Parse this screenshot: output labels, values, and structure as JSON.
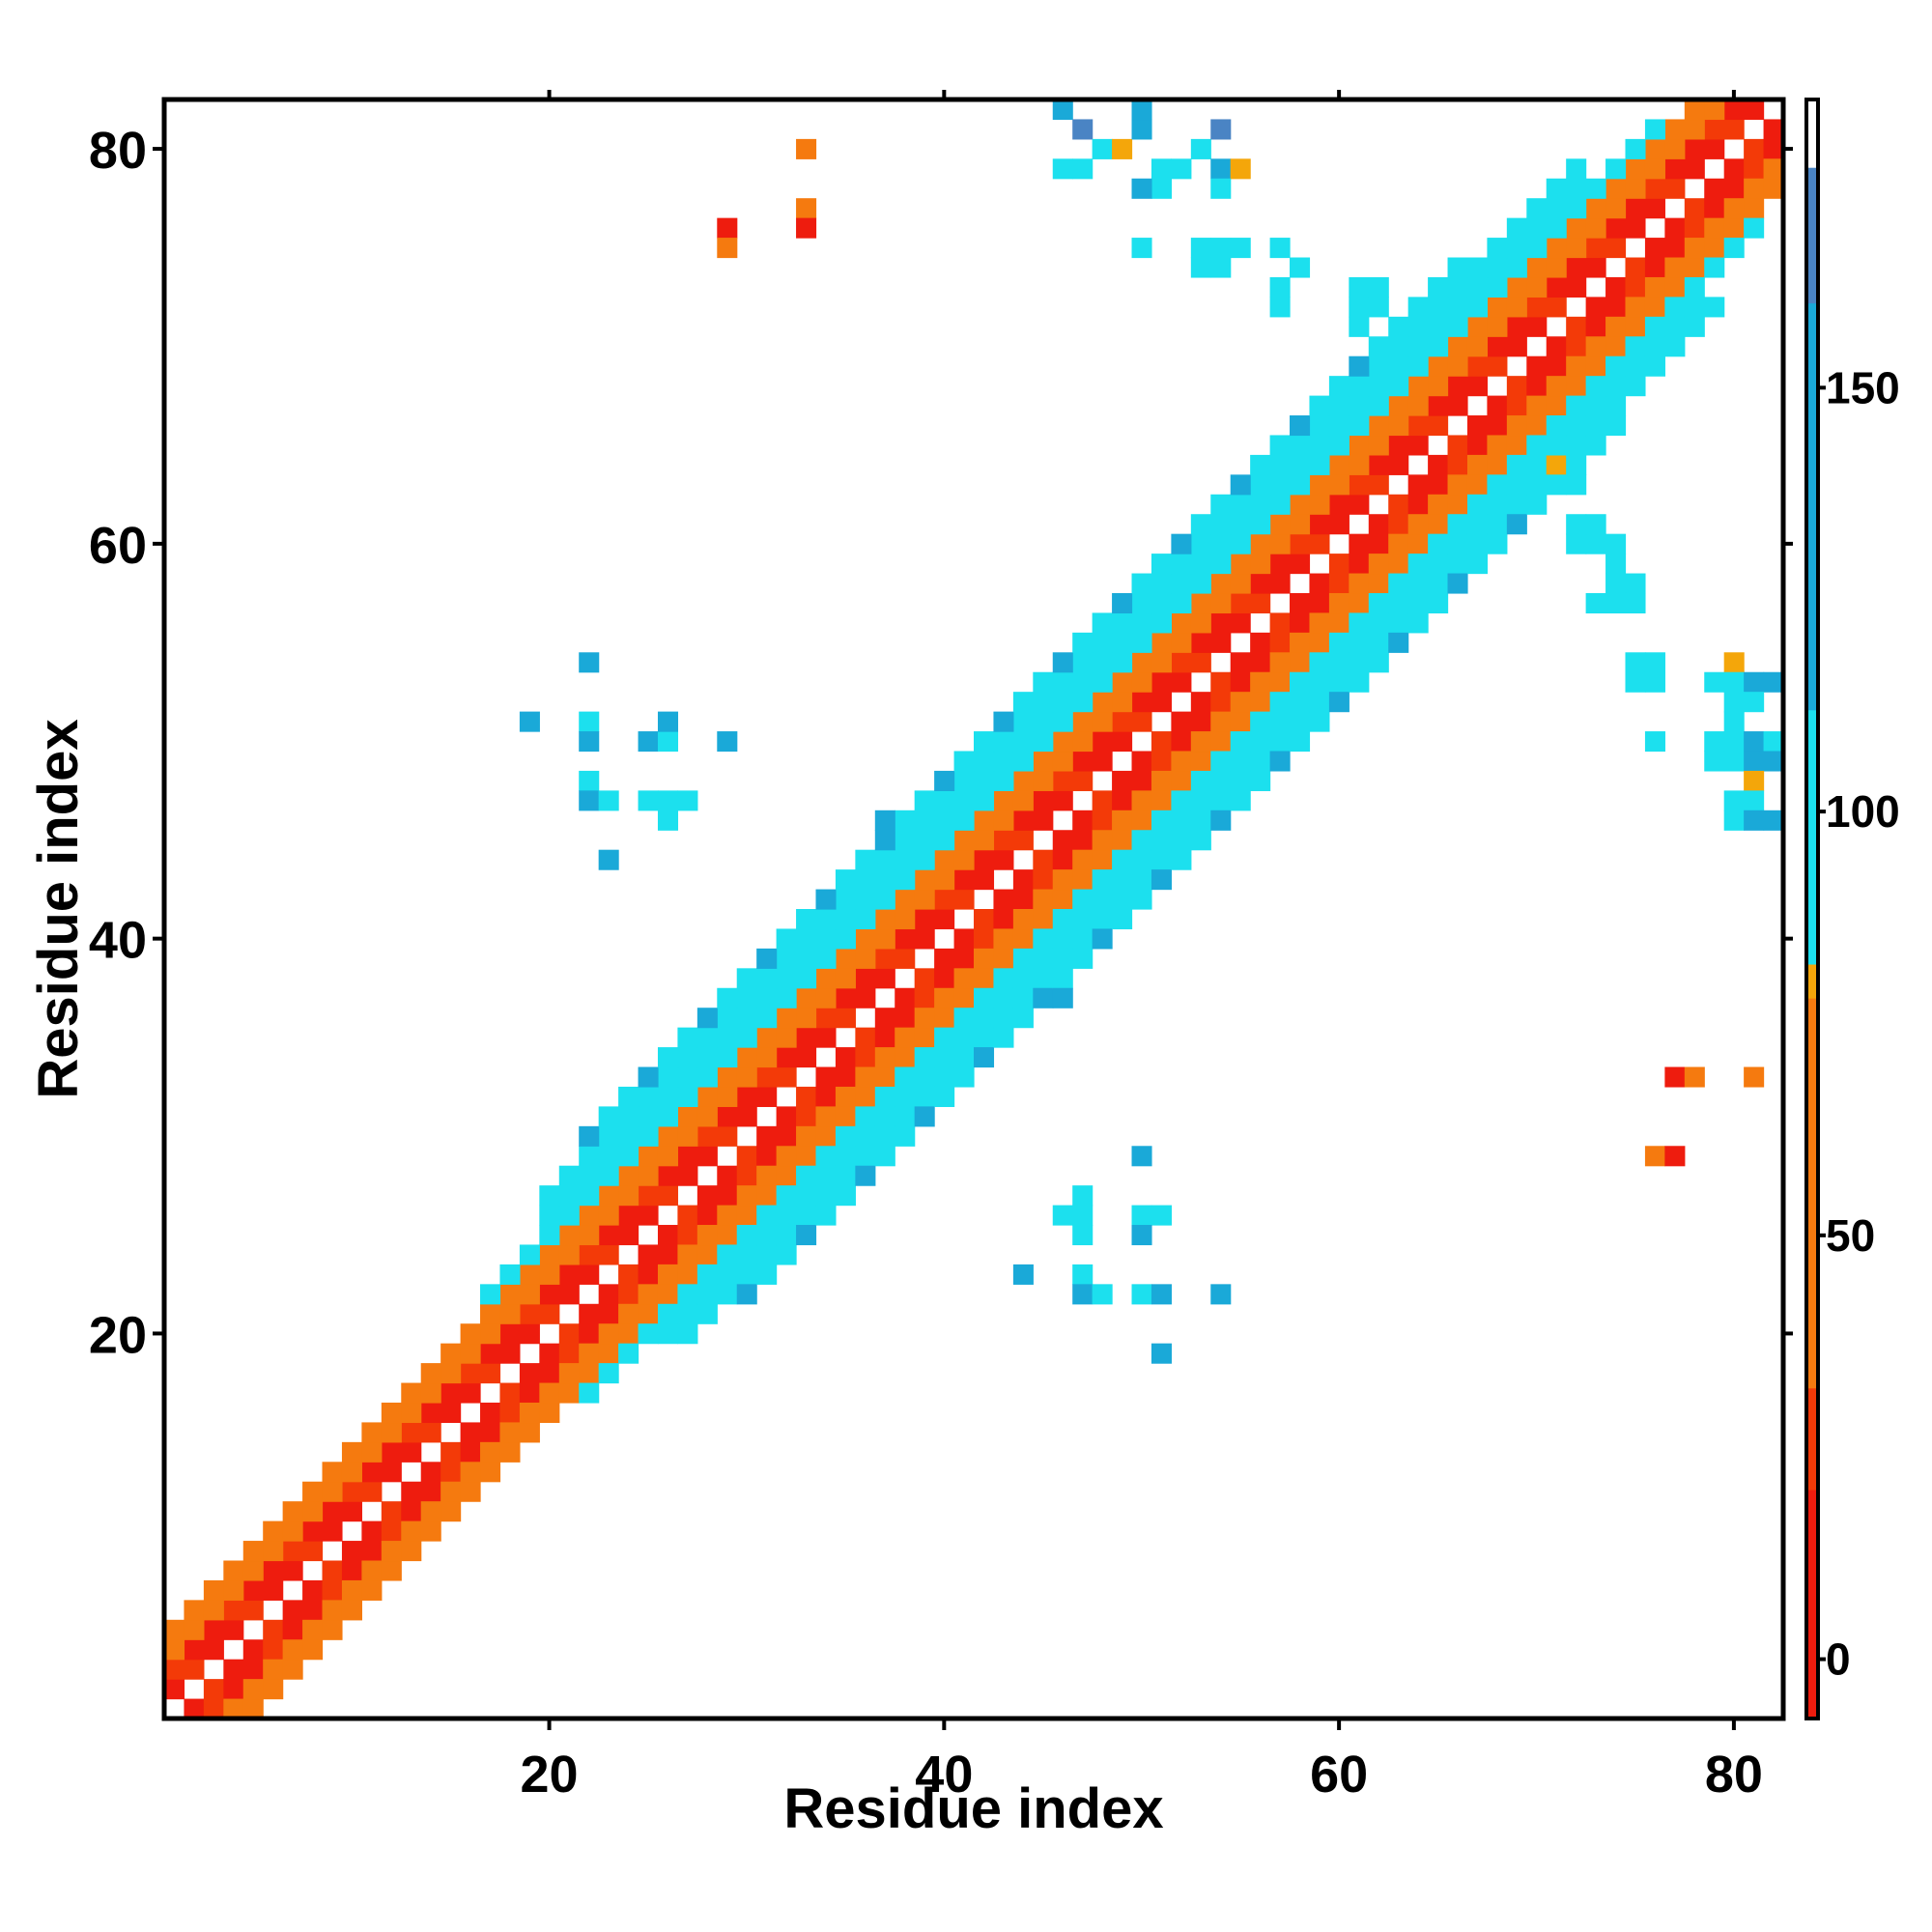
{
  "chart_data": {
    "type": "heatmap",
    "xlabel": "Residue index",
    "ylabel": "Residue index",
    "xlim": [
      1,
      82
    ],
    "ylim": [
      1,
      82
    ],
    "x_ticks": [
      20,
      40,
      60,
      80
    ],
    "y_ticks": [
      20,
      40,
      60,
      80
    ],
    "x_tick_labels": [
      "20",
      "40",
      "60",
      "80"
    ],
    "y_tick_labels": [
      "20",
      "40",
      "60",
      "80"
    ],
    "colorbar": {
      "range": [
        -7,
        184
      ],
      "ticks": [
        0,
        50,
        100,
        150
      ],
      "tick_labels": [
        "0",
        "50",
        "100",
        "150"
      ],
      "stops": [
        {
          "from": -7,
          "to": 20,
          "color": "#ee1c0e"
        },
        {
          "from": 20,
          "to": 32,
          "color": "#f33a08"
        },
        {
          "from": 32,
          "to": 78,
          "color": "#f57a0f"
        },
        {
          "from": 78,
          "to": 82,
          "color": "#f4a60a"
        },
        {
          "from": 82,
          "to": 112,
          "color": "#1ce0ee"
        },
        {
          "from": 112,
          "to": 160,
          "color": "#1aa9d8"
        },
        {
          "from": 160,
          "to": 176,
          "color": "#4a84c4"
        },
        {
          "from": 176,
          "to": 184,
          "color": "#ffffff"
        }
      ]
    },
    "legend": "colorbar-right",
    "grid": false,
    "diagonal_bands": [
      {
        "offset_min": 1,
        "offset_max": 2,
        "value": 15,
        "range": [
          1,
          82
        ]
      },
      {
        "offset_min": 3,
        "offset_max": 4,
        "value": 45,
        "range": [
          1,
          82
        ]
      },
      {
        "offset_min": 5,
        "offset_max": 5,
        "value": 98,
        "range": [
          17,
          76
        ]
      },
      {
        "offset_min": 6,
        "offset_max": 7,
        "value": 100,
        "range": [
          20,
          72
        ]
      },
      {
        "offset_min": 8,
        "offset_max": 8,
        "value": 105,
        "range": [
          22,
          66
        ]
      }
    ],
    "cells": [
      {
        "x": 33,
        "y": 80,
        "value": 45
      },
      {
        "x": 33,
        "y": 77,
        "value": 45
      },
      {
        "x": 33,
        "y": 76,
        "value": 15
      },
      {
        "x": 29,
        "y": 76,
        "value": 15
      },
      {
        "x": 29,
        "y": 75,
        "value": 45
      },
      {
        "x": 46,
        "y": 82,
        "value": 140
      },
      {
        "x": 47,
        "y": 81,
        "value": 165
      },
      {
        "x": 48,
        "y": 80,
        "value": 100
      },
      {
        "x": 49,
        "y": 80,
        "value": 80
      },
      {
        "x": 50,
        "y": 81,
        "value": 140
      },
      {
        "x": 50,
        "y": 82,
        "value": 140
      },
      {
        "x": 51,
        "y": 79,
        "value": 95
      },
      {
        "x": 52,
        "y": 79,
        "value": 95
      },
      {
        "x": 53,
        "y": 80,
        "value": 105
      },
      {
        "x": 54,
        "y": 81,
        "value": 165
      },
      {
        "x": 54,
        "y": 79,
        "value": 140
      },
      {
        "x": 55,
        "y": 79,
        "value": 80
      },
      {
        "x": 47,
        "y": 79,
        "value": 100
      },
      {
        "x": 46,
        "y": 79,
        "value": 100
      },
      {
        "x": 51,
        "y": 78,
        "value": 95
      },
      {
        "x": 50,
        "y": 78,
        "value": 140
      },
      {
        "x": 54,
        "y": 78,
        "value": 105
      },
      {
        "x": 50,
        "y": 75,
        "value": 100
      },
      {
        "x": 53,
        "y": 75,
        "value": 100
      },
      {
        "x": 54,
        "y": 75,
        "value": 105
      },
      {
        "x": 55,
        "y": 75,
        "value": 100
      },
      {
        "x": 53,
        "y": 74,
        "value": 100
      },
      {
        "x": 54,
        "y": 74,
        "value": 100
      },
      {
        "x": 57,
        "y": 75,
        "value": 100
      },
      {
        "x": 58,
        "y": 74,
        "value": 105
      },
      {
        "x": 57,
        "y": 73,
        "value": 100
      },
      {
        "x": 57,
        "y": 72,
        "value": 100
      },
      {
        "x": 61,
        "y": 73,
        "value": 100
      },
      {
        "x": 62,
        "y": 73,
        "value": 100
      },
      {
        "x": 61,
        "y": 72,
        "value": 100
      },
      {
        "x": 62,
        "y": 72,
        "value": 100
      },
      {
        "x": 61,
        "y": 71,
        "value": 100
      },
      {
        "x": 64,
        "y": 72,
        "value": 100
      },
      {
        "x": 65,
        "y": 71,
        "value": 100
      },
      {
        "x": 22,
        "y": 54,
        "value": 140
      },
      {
        "x": 19,
        "y": 51,
        "value": 140
      },
      {
        "x": 22,
        "y": 51,
        "value": 105
      },
      {
        "x": 22,
        "y": 50,
        "value": 140
      },
      {
        "x": 25,
        "y": 50,
        "value": 140
      },
      {
        "x": 26,
        "y": 50,
        "value": 105
      },
      {
        "x": 26,
        "y": 51,
        "value": 140
      },
      {
        "x": 29,
        "y": 50,
        "value": 140
      },
      {
        "x": 22,
        "y": 48,
        "value": 100
      },
      {
        "x": 22,
        "y": 47,
        "value": 140
      },
      {
        "x": 23,
        "y": 47,
        "value": 105
      },
      {
        "x": 25,
        "y": 47,
        "value": 100
      },
      {
        "x": 26,
        "y": 47,
        "value": 105
      },
      {
        "x": 27,
        "y": 47,
        "value": 100
      },
      {
        "x": 26,
        "y": 46,
        "value": 100
      },
      {
        "x": 23,
        "y": 44,
        "value": 140
      },
      {
        "x": 37,
        "y": 46,
        "value": 140
      },
      {
        "x": 46,
        "y": 37,
        "value": 140
      },
      {
        "x": 50,
        "y": 29,
        "value": 140
      },
      {
        "x": 46,
        "y": 26,
        "value": 100
      },
      {
        "x": 47,
        "y": 26,
        "value": 105
      },
      {
        "x": 47,
        "y": 27,
        "value": 100
      },
      {
        "x": 47,
        "y": 25,
        "value": 100
      },
      {
        "x": 50,
        "y": 26,
        "value": 105
      },
      {
        "x": 51,
        "y": 26,
        "value": 100
      },
      {
        "x": 50,
        "y": 25,
        "value": 140
      },
      {
        "x": 44,
        "y": 23,
        "value": 140
      },
      {
        "x": 47,
        "y": 23,
        "value": 105
      },
      {
        "x": 47,
        "y": 22,
        "value": 140
      },
      {
        "x": 48,
        "y": 22,
        "value": 100
      },
      {
        "x": 50,
        "y": 22,
        "value": 100
      },
      {
        "x": 51,
        "y": 22,
        "value": 140
      },
      {
        "x": 54,
        "y": 22,
        "value": 140
      },
      {
        "x": 51,
        "y": 19,
        "value": 140
      },
      {
        "x": 72,
        "y": 60,
        "value": 100
      },
      {
        "x": 73,
        "y": 60,
        "value": 100
      },
      {
        "x": 74,
        "y": 60,
        "value": 100
      },
      {
        "x": 72,
        "y": 61,
        "value": 100
      },
      {
        "x": 73,
        "y": 61,
        "value": 100
      },
      {
        "x": 74,
        "y": 59,
        "value": 100
      },
      {
        "x": 72,
        "y": 64,
        "value": 100
      },
      {
        "x": 72,
        "y": 63,
        "value": 105
      },
      {
        "x": 71,
        "y": 64,
        "value": 80
      },
      {
        "x": 74,
        "y": 58,
        "value": 100
      },
      {
        "x": 75,
        "y": 58,
        "value": 105
      },
      {
        "x": 73,
        "y": 57,
        "value": 100
      },
      {
        "x": 74,
        "y": 57,
        "value": 100
      },
      {
        "x": 75,
        "y": 57,
        "value": 100
      },
      {
        "x": 75,
        "y": 54,
        "value": 100
      },
      {
        "x": 76,
        "y": 54,
        "value": 105
      },
      {
        "x": 75,
        "y": 53,
        "value": 100
      },
      {
        "x": 76,
        "y": 53,
        "value": 100
      },
      {
        "x": 79,
        "y": 53,
        "value": 100
      },
      {
        "x": 80,
        "y": 54,
        "value": 80
      },
      {
        "x": 80,
        "y": 53,
        "value": 105
      },
      {
        "x": 81,
        "y": 53,
        "value": 140
      },
      {
        "x": 82,
        "y": 53,
        "value": 140
      },
      {
        "x": 80,
        "y": 52,
        "value": 100
      },
      {
        "x": 81,
        "y": 52,
        "value": 105
      },
      {
        "x": 80,
        "y": 51,
        "value": 100
      },
      {
        "x": 76,
        "y": 50,
        "value": 100
      },
      {
        "x": 79,
        "y": 50,
        "value": 100
      },
      {
        "x": 80,
        "y": 50,
        "value": 95
      },
      {
        "x": 81,
        "y": 50,
        "value": 140
      },
      {
        "x": 82,
        "y": 50,
        "value": 105
      },
      {
        "x": 79,
        "y": 49,
        "value": 105
      },
      {
        "x": 80,
        "y": 49,
        "value": 105
      },
      {
        "x": 81,
        "y": 49,
        "value": 140
      },
      {
        "x": 82,
        "y": 49,
        "value": 140
      },
      {
        "x": 83,
        "y": 49,
        "value": 140
      },
      {
        "x": 81,
        "y": 48,
        "value": 80
      },
      {
        "x": 80,
        "y": 47,
        "value": 100
      },
      {
        "x": 81,
        "y": 47,
        "value": 105
      },
      {
        "x": 80,
        "y": 46,
        "value": 100
      },
      {
        "x": 81,
        "y": 46,
        "value": 140
      },
      {
        "x": 82,
        "y": 46,
        "value": 140
      },
      {
        "x": 83,
        "y": 45,
        "value": 140
      },
      {
        "x": 77,
        "y": 33,
        "value": 15
      },
      {
        "x": 78,
        "y": 33,
        "value": 45
      },
      {
        "x": 81,
        "y": 33,
        "value": 45
      },
      {
        "x": 76,
        "y": 29,
        "value": 45
      },
      {
        "x": 77,
        "y": 29,
        "value": 15
      }
    ]
  }
}
